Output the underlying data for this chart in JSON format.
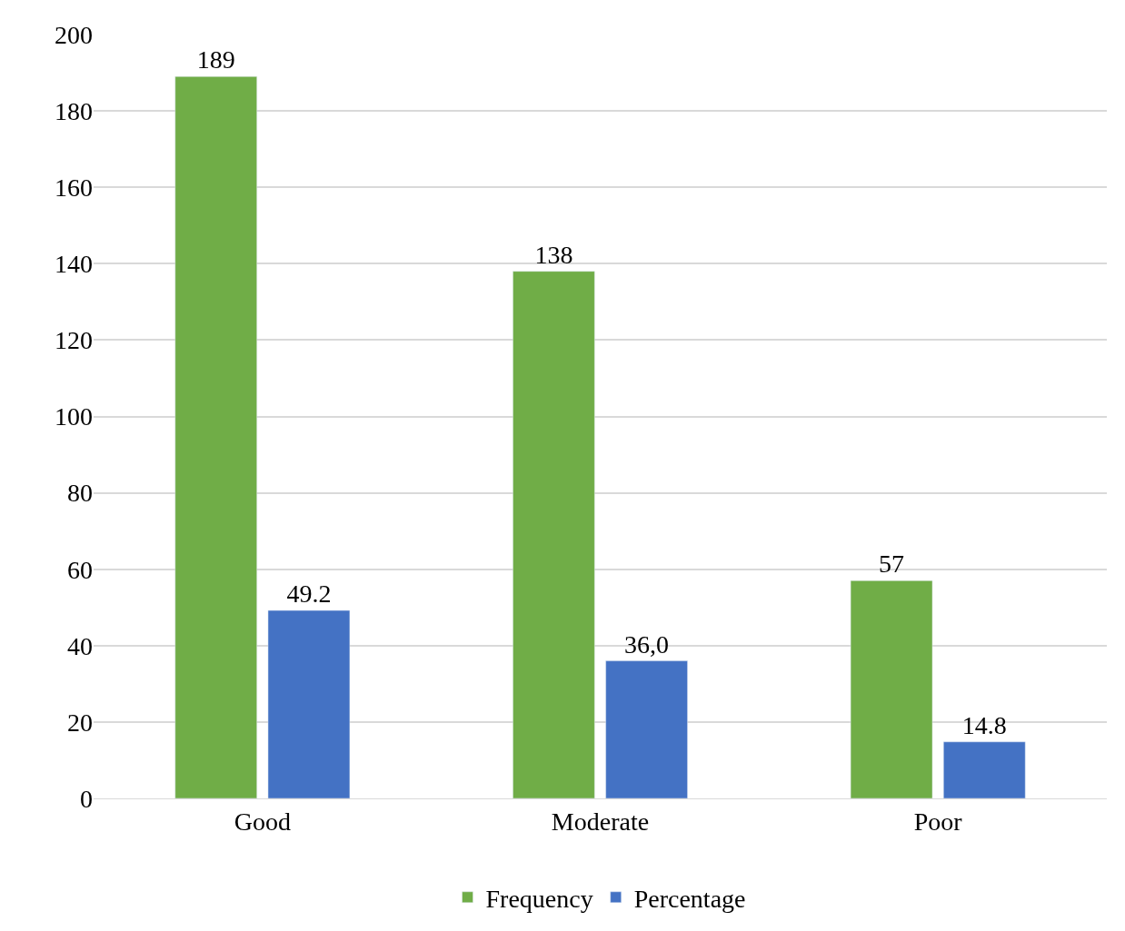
{
  "chart_data": {
    "type": "bar",
    "categories": [
      "Good",
      "Moderate",
      "Poor"
    ],
    "series": [
      {
        "name": "Frequency",
        "color": "#70ad47",
        "values": [
          189,
          138,
          57
        ],
        "value_labels": [
          "189",
          "138",
          "57"
        ]
      },
      {
        "name": "Percentage",
        "color": "#4472c4",
        "values": [
          49.2,
          36.0,
          14.8
        ],
        "value_labels": [
          "49.2",
          "36,0",
          "14.8"
        ]
      }
    ],
    "ylim": [
      0,
      200
    ],
    "yticks": [
      0,
      20,
      40,
      60,
      80,
      100,
      120,
      140,
      160,
      180,
      200
    ],
    "grid": "y",
    "legend": "bottom"
  }
}
